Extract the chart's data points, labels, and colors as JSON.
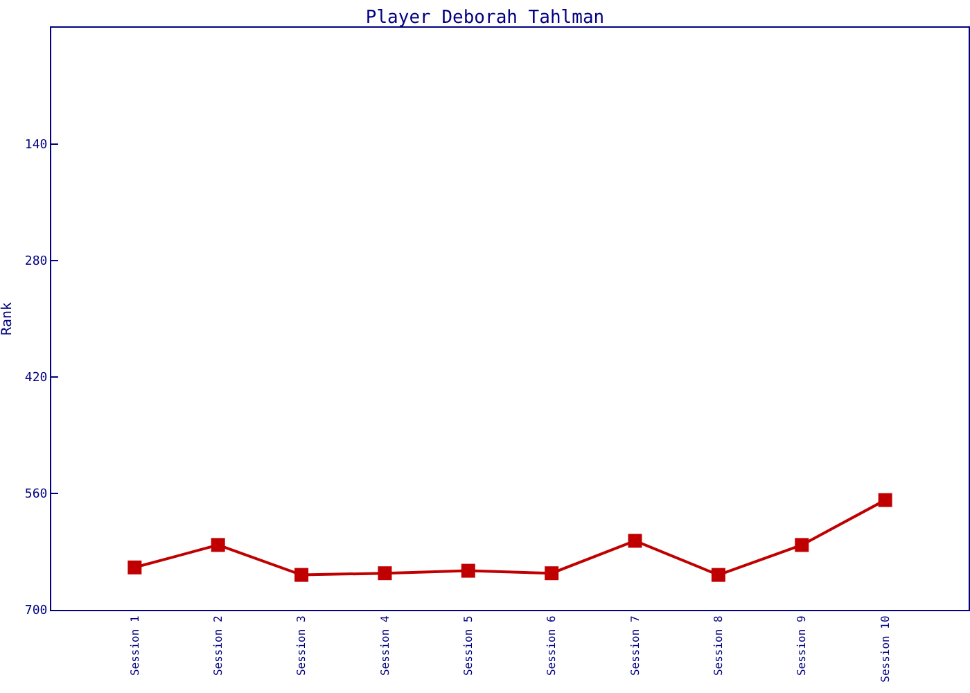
{
  "chart_data": {
    "type": "line",
    "title": "Player Deborah Tahlman",
    "ylabel": "Rank",
    "categories": [
      "Session 1",
      "Session 2",
      "Session 3",
      "Session 4",
      "Session 5",
      "Session 6",
      "Session 7",
      "Session 8",
      "Session 9",
      "Session 10"
    ],
    "series": [
      {
        "color": "#c00000",
        "values": [
          649,
          622,
          658,
          656,
          653,
          656,
          617,
          658,
          622,
          568
        ]
      }
    ],
    "ylim": [
      700,
      0
    ],
    "yticks": [
      140,
      280,
      420,
      560,
      700
    ],
    "marker": "square",
    "line_style": "solid"
  }
}
